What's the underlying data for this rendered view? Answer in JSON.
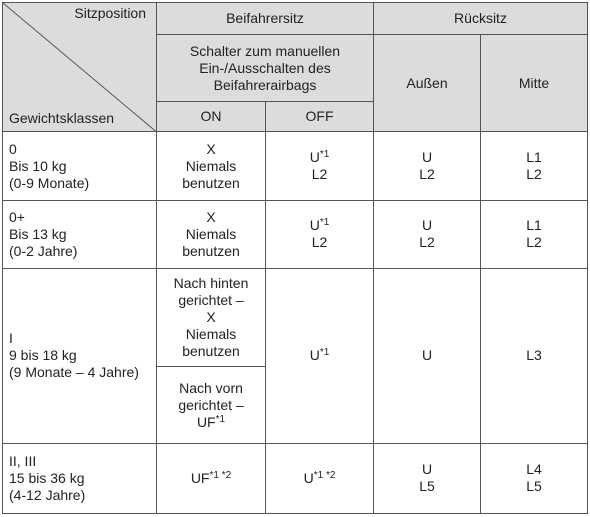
{
  "header": {
    "sitzposition": "Sitzposition",
    "gewichtsklassen": "Gewichtsklassen",
    "beifahrersitz": "Beifahrersitz",
    "ruecksitz": "Rücksitz",
    "schalter": [
      "Schalter zum manuellen",
      "Ein-/Ausschalten des",
      "Beifahrerairbags"
    ],
    "on": "ON",
    "off": "OFF",
    "aussen": "Außen",
    "mitte": "Mitte"
  },
  "rows": [
    {
      "klasse": [
        "0",
        "Bis 10 kg",
        "(0-9 Monate)"
      ],
      "on": [
        "X",
        "Niemals",
        "benutzen"
      ],
      "off": {
        "main": "U",
        "sup": "*1",
        "line2": "L2"
      },
      "aussen": [
        "U",
        "L2"
      ],
      "mitte": [
        "L1",
        "L2"
      ]
    },
    {
      "klasse": [
        "0+",
        "Bis 13 kg",
        "(0-2 Jahre)"
      ],
      "on": [
        "X",
        "Niemals",
        "benutzen"
      ],
      "off": {
        "main": "U",
        "sup": "*1",
        "line2": "L2"
      },
      "aussen": [
        "U",
        "L2"
      ],
      "mitte": [
        "L1",
        "L2"
      ]
    },
    {
      "klasse": [
        "I",
        "9 bis 18 kg",
        "(9 Monate – 4 Jahre)"
      ],
      "on_rear": [
        "Nach hinten",
        "gerichtet –",
        "X",
        "Niemals",
        "benutzen"
      ],
      "on_front": {
        "lines": [
          "Nach vorn",
          "gerichtet –"
        ],
        "main": "UF",
        "sup": "*1"
      },
      "off": {
        "main": "U",
        "sup": "*1"
      },
      "aussen": [
        "U"
      ],
      "mitte": [
        "L3"
      ]
    },
    {
      "klasse": [
        "II, III",
        "15 bis 36 kg",
        "(4-12 Jahre)"
      ],
      "on": {
        "main": "UF",
        "sup": "*1 *2"
      },
      "off": {
        "main": "U",
        "sup": "*1 *2"
      },
      "aussen": [
        "U",
        "L5"
      ],
      "mitte": [
        "L4",
        "L5"
      ]
    }
  ]
}
